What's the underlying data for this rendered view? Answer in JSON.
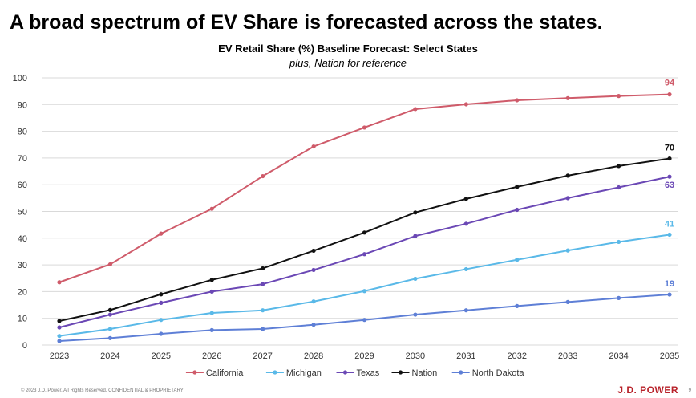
{
  "headline": "A broad spectrum of EV Share is forecasted across the states.",
  "footer": {
    "copyright": "© 2023 J.D. Power. All Rights Reserved. CONFIDENTIAL & PROPRIETARY",
    "brand": "J.D. POWER",
    "page": "9"
  },
  "chart_data": {
    "type": "line",
    "title": "EV Retail Share (%) Baseline Forecast: Select States",
    "subtitle": "plus, Nation for reference",
    "xlabel": "",
    "ylabel": "",
    "x": [
      "2023",
      "2024",
      "2025",
      "2026",
      "2027",
      "2028",
      "2029",
      "2030",
      "2031",
      "2032",
      "2033",
      "2034",
      "2035"
    ],
    "ylim": [
      0,
      100
    ],
    "yticks": [
      0,
      10,
      20,
      30,
      40,
      50,
      60,
      70,
      80,
      90,
      100
    ],
    "grid": true,
    "legend_position": "bottom",
    "series": [
      {
        "name": "California",
        "color": "#cf5b6a",
        "end_label": "94",
        "values": [
          23.5,
          30.2,
          41.7,
          51.0,
          63.2,
          74.3,
          81.4,
          88.3,
          90.1,
          91.6,
          92.4,
          93.2,
          93.8
        ]
      },
      {
        "name": "Michigan",
        "color": "#5ab9e8",
        "end_label": "41",
        "values": [
          3.4,
          6.0,
          9.4,
          12.0,
          13.0,
          16.3,
          20.2,
          24.8,
          28.4,
          31.9,
          35.4,
          38.6,
          41.3
        ]
      },
      {
        "name": "Texas",
        "color": "#6b48b5",
        "end_label": "63",
        "values": [
          6.6,
          11.4,
          15.8,
          20.0,
          22.8,
          28.1,
          34.0,
          40.8,
          45.4,
          50.6,
          55.0,
          59.0,
          63.0
        ]
      },
      {
        "name": "Nation",
        "color": "#111111",
        "end_label": "70",
        "values": [
          9.0,
          13.1,
          19.0,
          24.4,
          28.7,
          35.3,
          42.1,
          49.6,
          54.7,
          59.2,
          63.4,
          67.0,
          69.8
        ]
      },
      {
        "name": "North Dakota",
        "color": "#5e7fd6",
        "end_label": "19",
        "values": [
          1.5,
          2.6,
          4.2,
          5.6,
          6.0,
          7.6,
          9.4,
          11.4,
          13.0,
          14.6,
          16.1,
          17.6,
          18.9
        ]
      }
    ]
  }
}
